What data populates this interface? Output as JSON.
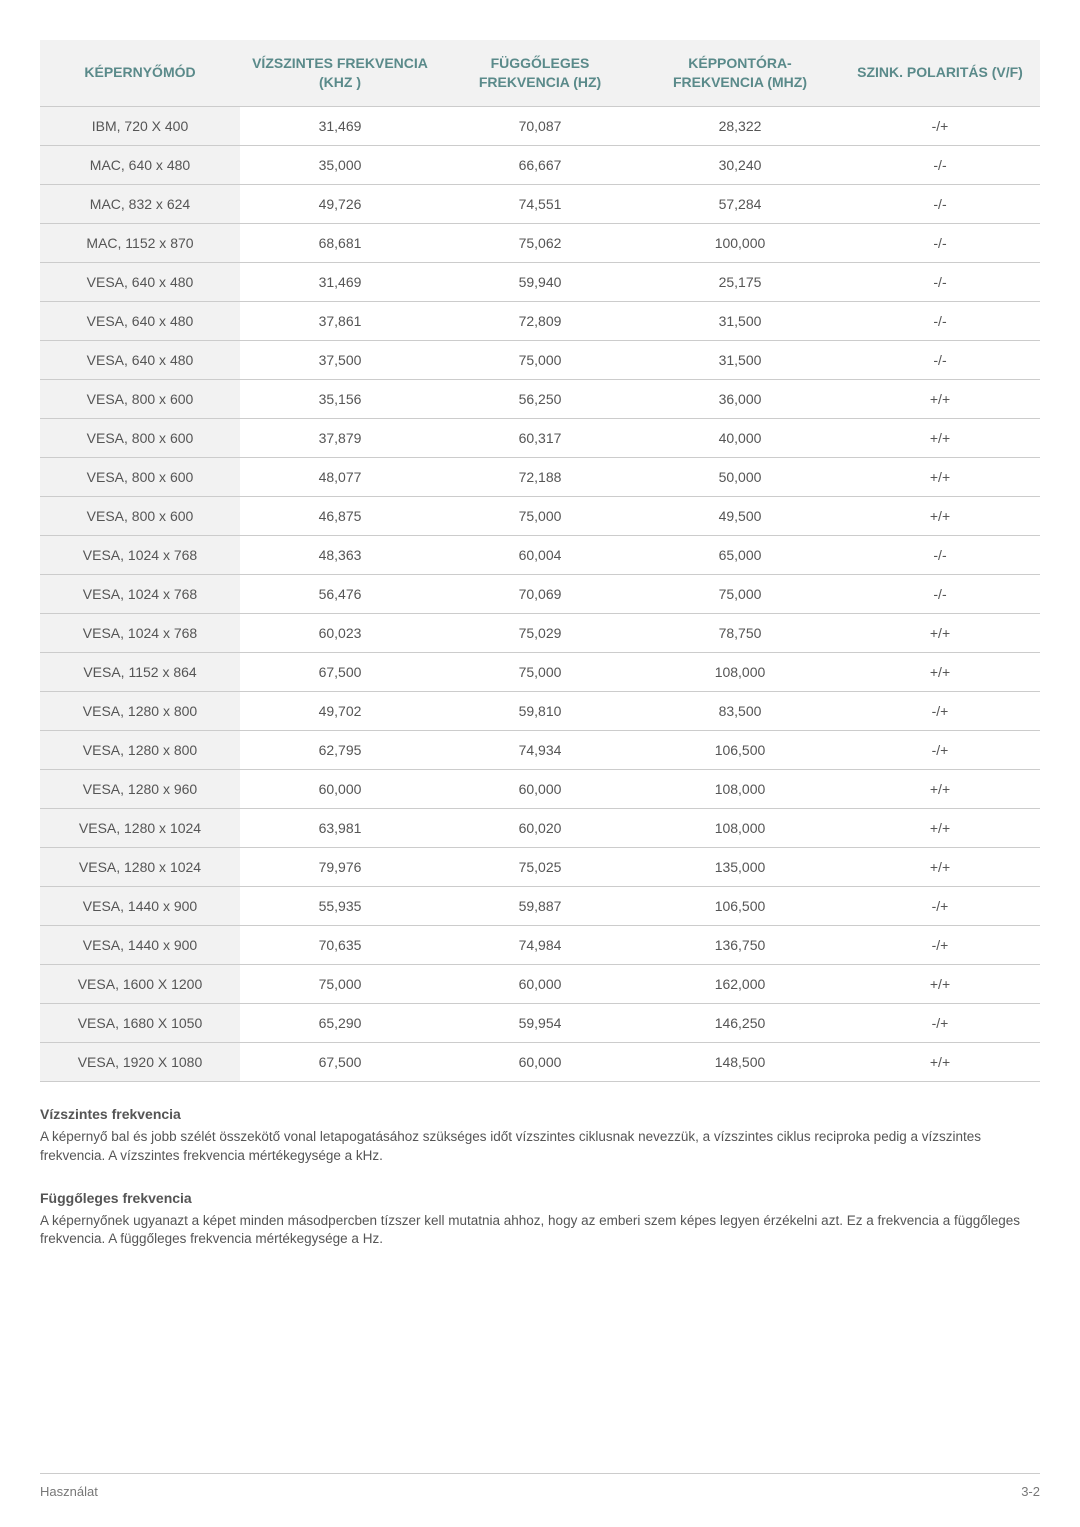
{
  "table": {
    "columns": [
      "KÉPERNYŐMÓD",
      "VÍZSZINTES FREKVENCIA (KHZ )",
      "FÜGGŐLEGES FREKVENCIA (HZ)",
      "KÉPPONTÓRA-FREKVENCIA (MHZ)",
      "SZINK. POLARITÁS (V/F)"
    ],
    "column_widths": [
      "20%",
      "20%",
      "20%",
      "20%",
      "20%"
    ],
    "header_bg": "#f2f2f2",
    "header_color": "#5a8a8a",
    "row_border_color": "#cccccc",
    "first_col_bg": "#f2f2f2",
    "cell_color": "#555555",
    "rows": [
      [
        "IBM, 720 X 400",
        "31,469",
        "70,087",
        "28,322",
        "-/+"
      ],
      [
        "MAC, 640 x 480",
        "35,000",
        "66,667",
        "30,240",
        "-/-"
      ],
      [
        "MAC, 832 x 624",
        "49,726",
        "74,551",
        "57,284",
        "-/-"
      ],
      [
        "MAC, 1152 x 870",
        "68,681",
        "75,062",
        "100,000",
        "-/-"
      ],
      [
        "VESA, 640 x 480",
        "31,469",
        "59,940",
        "25,175",
        "-/-"
      ],
      [
        "VESA, 640 x 480",
        "37,861",
        "72,809",
        "31,500",
        "-/-"
      ],
      [
        "VESA, 640 x 480",
        "37,500",
        "75,000",
        "31,500",
        "-/-"
      ],
      [
        "VESA, 800 x 600",
        "35,156",
        "56,250",
        "36,000",
        "+/+"
      ],
      [
        "VESA, 800 x 600",
        "37,879",
        "60,317",
        "40,000",
        "+/+"
      ],
      [
        "VESA, 800 x 600",
        "48,077",
        "72,188",
        "50,000",
        "+/+"
      ],
      [
        "VESA, 800 x 600",
        "46,875",
        "75,000",
        "49,500",
        "+/+"
      ],
      [
        "VESA, 1024 x 768",
        "48,363",
        "60,004",
        "65,000",
        "-/-"
      ],
      [
        "VESA, 1024 x 768",
        "56,476",
        "70,069",
        "75,000",
        "-/-"
      ],
      [
        "VESA, 1024 x 768",
        "60,023",
        "75,029",
        "78,750",
        "+/+"
      ],
      [
        "VESA, 1152 x 864",
        "67,500",
        "75,000",
        "108,000",
        "+/+"
      ],
      [
        "VESA, 1280 x 800",
        "49,702",
        "59,810",
        "83,500",
        "-/+"
      ],
      [
        "VESA, 1280 x 800",
        "62,795",
        "74,934",
        "106,500",
        "-/+"
      ],
      [
        "VESA, 1280 x 960",
        "60,000",
        "60,000",
        "108,000",
        "+/+"
      ],
      [
        "VESA, 1280 x 1024",
        "63,981",
        "60,020",
        "108,000",
        "+/+"
      ],
      [
        "VESA, 1280 x 1024",
        "79,976",
        "75,025",
        "135,000",
        "+/+"
      ],
      [
        "VESA, 1440 x 900",
        "55,935",
        "59,887",
        "106,500",
        "-/+"
      ],
      [
        "VESA, 1440 x 900",
        "70,635",
        "74,984",
        "136,750",
        "-/+"
      ],
      [
        "VESA, 1600 X 1200",
        "75,000",
        "60,000",
        "162,000",
        "+/+"
      ],
      [
        "VESA, 1680 X 1050",
        "65,290",
        "59,954",
        "146,250",
        "-/+"
      ],
      [
        "VESA, 1920 X 1080",
        "67,500",
        "60,000",
        "148,500",
        "+/+"
      ]
    ]
  },
  "sections": {
    "s1": {
      "title": "Vízszintes frekvencia",
      "body": "A képernyő bal és jobb szélét összekötő vonal letapogatásához szükséges időt vízszintes ciklusnak nevezzük, a vízszintes ciklus reciproka pedig a vízszintes frekvencia. A vízszintes frekvencia mértékegysége a kHz."
    },
    "s2": {
      "title": "Függőleges frekvencia",
      "body": "A képernyőnek ugyanazt a képet minden másodpercben tízszer kell mutatnia ahhoz, hogy az emberi szem képes legyen érzékelni azt. Ez a frekvencia a függőleges frekvencia. A függőleges frekvencia mértékegysége a Hz."
    }
  },
  "footer": {
    "left": "Használat",
    "right": "3-2"
  }
}
